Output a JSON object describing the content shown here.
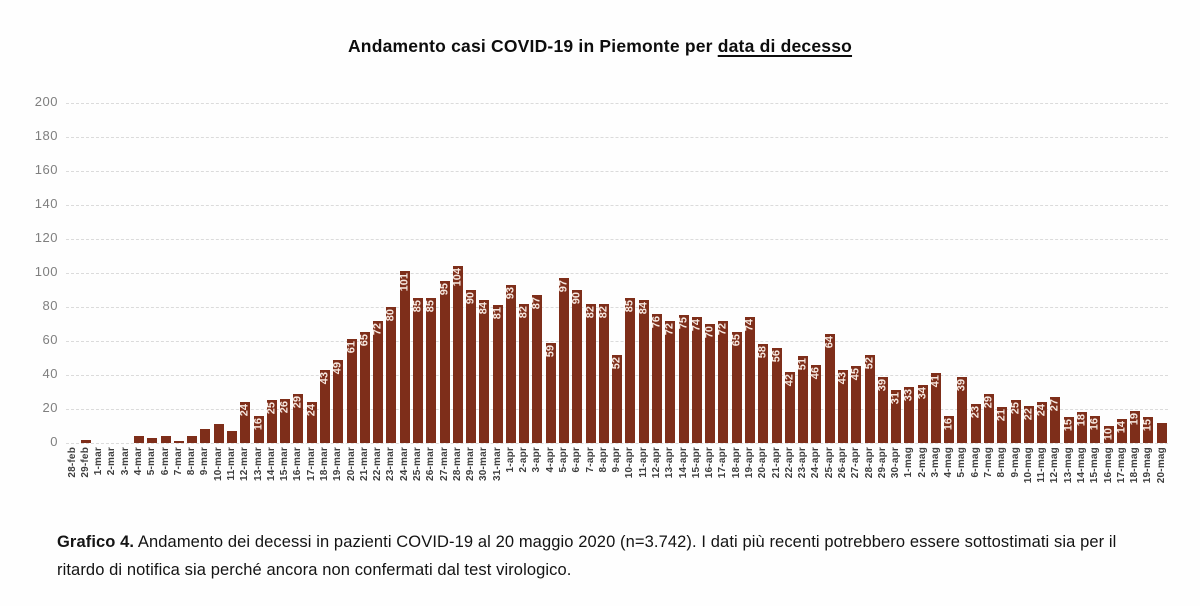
{
  "title": {
    "prefix": "Andamento casi COVID-19 in Piemonte per ",
    "underlined": "data di decesso"
  },
  "caption": {
    "bold": "Grafico 4.",
    "text": " Andamento dei decessi in pazienti COVID-19 al 20 maggio 2020 (n=3.742). I dati più recenti potrebbero essere sottostimati sia per il ritardo di notifica sia perché ancora non confermati dal test virologico."
  },
  "colors": {
    "bar": "#7E2E1A",
    "bar_label": "#F6E8E0",
    "grid": "#DBDBDB",
    "y_axis_text": "#7F7F7F",
    "date_text": "#3E3E3E",
    "title_text": "#0D0D0D",
    "background": "#FEFEFE"
  },
  "chart_data": {
    "type": "bar",
    "title": "Andamento casi COVID-19 in Piemonte per data di decesso",
    "xlabel": "",
    "ylabel": "",
    "ylim": [
      0,
      200
    ],
    "yticks": [
      200,
      180,
      160,
      140,
      120,
      100,
      80,
      60,
      40,
      20,
      0
    ],
    "grid": "horizontal-dashed",
    "legend": "none",
    "bar_labels_rotation": "vertical-bottom-to-top",
    "categories": [
      "28-feb",
      "29-feb",
      "1-mar",
      "2-mar",
      "3-mar",
      "4-mar",
      "5-mar",
      "6-mar",
      "7-mar",
      "8-mar",
      "9-mar",
      "10-mar",
      "11-mar",
      "12-mar",
      "13-mar",
      "14-mar",
      "15-mar",
      "16-mar",
      "17-mar",
      "18-mar",
      "19-mar",
      "20-mar",
      "21-mar",
      "22-mar",
      "23-mar",
      "24-mar",
      "25-mar",
      "26-mar",
      "27-mar",
      "28-mar",
      "29-mar",
      "30-mar",
      "31-mar",
      "1-apr",
      "2-apr",
      "3-apr",
      "4-apr",
      "5-apr",
      "6-apr",
      "7-apr",
      "8-apr",
      "9-apr",
      "10-apr",
      "11-apr",
      "12-apr",
      "13-apr",
      "14-apr",
      "15-apr",
      "16-apr",
      "17-apr",
      "18-apr",
      "19-apr",
      "20-apr",
      "21-apr",
      "22-apr",
      "23-apr",
      "24-apr",
      "25-apr",
      "26-apr",
      "27-apr",
      "28-apr",
      "29-apr",
      "30-apr",
      "1-mag",
      "2-mag",
      "3-mag",
      "4-mag",
      "5-mag",
      "6-mag",
      "7-mag",
      "8-mag",
      "9-mag",
      "10-mag",
      "11-mag",
      "12-mag",
      "13-mag",
      "14-mag",
      "15-mag",
      "16-mag",
      "17-mag",
      "18-mag",
      "19-mag",
      "20-mag"
    ],
    "values": [
      0,
      2,
      0,
      0,
      0,
      4,
      3,
      4,
      1,
      4,
      8,
      11,
      7,
      24,
      16,
      25,
      26,
      29,
      24,
      43,
      49,
      61,
      65,
      72,
      80,
      101,
      85,
      85,
      95,
      104,
      90,
      84,
      81,
      93,
      82,
      87,
      59,
      97,
      90,
      82,
      82,
      52,
      85,
      84,
      76,
      72,
      75,
      74,
      70,
      72,
      65,
      74,
      58,
      56,
      42,
      51,
      46,
      64,
      43,
      45,
      52,
      39,
      31,
      33,
      34,
      41,
      16,
      39,
      23,
      29,
      21,
      25,
      22,
      24,
      27,
      15,
      18,
      16,
      10,
      14,
      19,
      15,
      12
    ],
    "value_labels": [
      "",
      "",
      "",
      "",
      "",
      "",
      "",
      "",
      "",
      "",
      "",
      "",
      "",
      "24",
      "16",
      "25",
      "26",
      "29",
      "24",
      "43",
      "49",
      "61",
      "65",
      "72",
      "80",
      "101",
      "85",
      "85",
      "95",
      "104",
      "90",
      "84",
      "81",
      "93",
      "82",
      "87",
      "59",
      "97",
      "90",
      "82",
      "82",
      "52",
      "85",
      "84",
      "76",
      "72",
      "75",
      "74",
      "70",
      "72",
      "65",
      "74",
      "58",
      "56",
      "42",
      "51",
      "46",
      "64",
      "43",
      "45",
      "52",
      "39",
      "31",
      "33",
      "34",
      "41",
      "16",
      "39",
      "23",
      "29",
      "21",
      "25",
      "22",
      "24",
      "27",
      "15",
      "18",
      "16",
      "10",
      "14",
      "19",
      "15",
      ""
    ]
  }
}
